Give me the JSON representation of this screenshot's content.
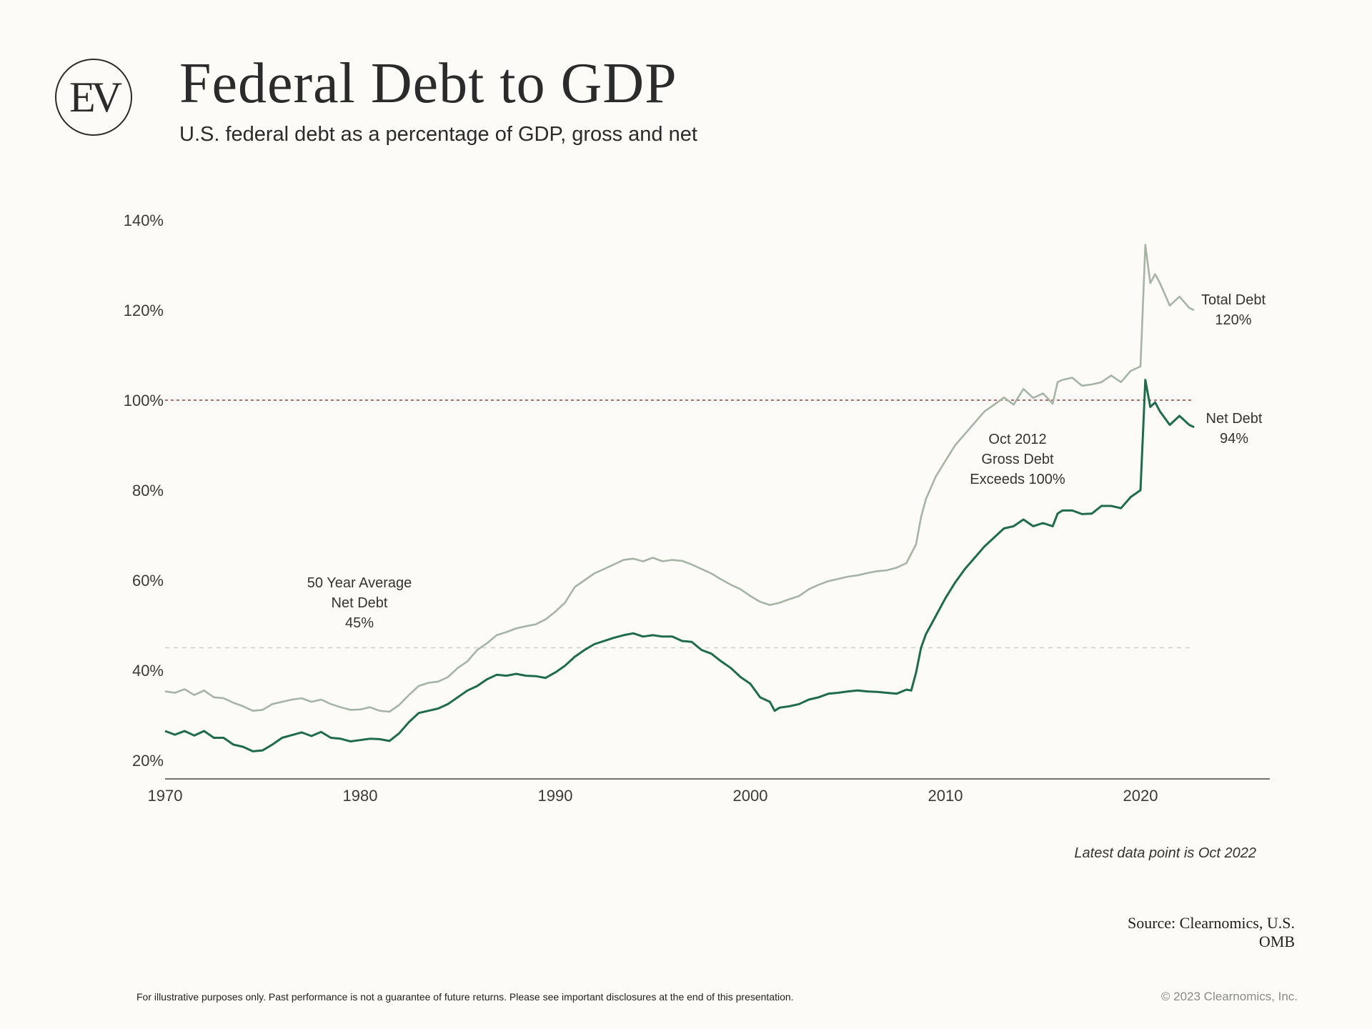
{
  "header": {
    "logo_text": "EV",
    "title": "Federal Debt to GDP",
    "subtitle": "U.S. federal debt as a percentage of GDP, gross and net"
  },
  "colors": {
    "gross": "#a6b4a6",
    "net": "#1f6b4d",
    "threshold": "#9b3b3b",
    "average": "#cfcfcf",
    "axis": "#444444"
  },
  "chart_data": {
    "type": "line",
    "title": "Federal Debt to GDP",
    "xlabel": "",
    "ylabel": "",
    "xlim": [
      1970,
      2026.5
    ],
    "ylim": [
      16,
      140
    ],
    "x_ticks": [
      1970,
      1980,
      1990,
      2000,
      2010,
      2020
    ],
    "x_tick_labels": [
      "1970",
      "1980",
      "1990",
      "2000",
      "2010",
      "2020"
    ],
    "y_ticks": [
      20,
      40,
      60,
      80,
      100,
      120,
      140
    ],
    "y_tick_labels": [
      "20%",
      "40%",
      "60%",
      "80%",
      "100%",
      "120%",
      "140%"
    ],
    "grid": false,
    "reference_lines": [
      {
        "name": "100% threshold",
        "y": 100,
        "style": "dotted",
        "color": "#9b3b3b"
      },
      {
        "name": "50 Year Average Net Debt",
        "y": 45,
        "style": "dashed",
        "color": "#cfcfcf"
      }
    ],
    "annotations": [
      {
        "lines": [
          "50 Year Average",
          "Net Debt",
          "45%"
        ]
      },
      {
        "lines": [
          "Oct 2012",
          "Gross Debt",
          "Exceeds 100%"
        ]
      }
    ],
    "series": [
      {
        "name": "Total Debt",
        "end_label": [
          "Total Debt",
          "120%"
        ],
        "color": "#a6b4a6",
        "points": [
          [
            1970,
            35.3
          ],
          [
            1970.5,
            35
          ],
          [
            1971,
            35.8
          ],
          [
            1971.5,
            34.5
          ],
          [
            1972,
            35.5
          ],
          [
            1972.5,
            34
          ],
          [
            1973,
            33.8
          ],
          [
            1973.5,
            32.8
          ],
          [
            1974,
            32
          ],
          [
            1974.5,
            31
          ],
          [
            1975,
            31.2
          ],
          [
            1975.5,
            32.5
          ],
          [
            1976,
            33
          ],
          [
            1976.5,
            33.5
          ],
          [
            1977,
            33.8
          ],
          [
            1977.5,
            33
          ],
          [
            1978,
            33.5
          ],
          [
            1978.5,
            32.5
          ],
          [
            1979,
            31.8
          ],
          [
            1979.5,
            31.2
          ],
          [
            1980,
            31.3
          ],
          [
            1980.5,
            31.8
          ],
          [
            1981,
            31
          ],
          [
            1981.5,
            30.8
          ],
          [
            1982,
            32.3
          ],
          [
            1982.5,
            34.5
          ],
          [
            1983,
            36.5
          ],
          [
            1983.5,
            37.2
          ],
          [
            1984,
            37.5
          ],
          [
            1984.5,
            38.5
          ],
          [
            1985,
            40.5
          ],
          [
            1985.5,
            42
          ],
          [
            1986,
            44.5
          ],
          [
            1986.5,
            46
          ],
          [
            1987,
            47.8
          ],
          [
            1987.5,
            48.5
          ],
          [
            1988,
            49.3
          ],
          [
            1988.5,
            49.8
          ],
          [
            1989,
            50.2
          ],
          [
            1989.5,
            51.3
          ],
          [
            1990,
            53
          ],
          [
            1990.5,
            55
          ],
          [
            1991,
            58.5
          ],
          [
            1991.5,
            60
          ],
          [
            1992,
            61.5
          ],
          [
            1992.5,
            62.5
          ],
          [
            1993,
            63.5
          ],
          [
            1993.5,
            64.5
          ],
          [
            1994,
            64.8
          ],
          [
            1994.5,
            64.2
          ],
          [
            1995,
            65
          ],
          [
            1995.5,
            64.2
          ],
          [
            1996,
            64.5
          ],
          [
            1996.5,
            64.3
          ],
          [
            1997,
            63.5
          ],
          [
            1997.5,
            62.5
          ],
          [
            1998,
            61.5
          ],
          [
            1998.5,
            60.2
          ],
          [
            1999,
            59
          ],
          [
            1999.5,
            58
          ],
          [
            2000,
            56.5
          ],
          [
            2000.5,
            55.2
          ],
          [
            2001,
            54.5
          ],
          [
            2001.5,
            55
          ],
          [
            2002,
            55.8
          ],
          [
            2002.5,
            56.5
          ],
          [
            2003,
            58
          ],
          [
            2003.5,
            59
          ],
          [
            2004,
            59.8
          ],
          [
            2004.5,
            60.3
          ],
          [
            2005,
            60.8
          ],
          [
            2005.5,
            61.1
          ],
          [
            2006,
            61.6
          ],
          [
            2006.5,
            62
          ],
          [
            2007,
            62.2
          ],
          [
            2007.5,
            62.8
          ],
          [
            2008,
            63.8
          ],
          [
            2008.5,
            68
          ],
          [
            2008.75,
            74
          ],
          [
            2009,
            78
          ],
          [
            2009.5,
            83
          ],
          [
            2010,
            86.5
          ],
          [
            2010.5,
            90
          ],
          [
            2011,
            92.5
          ],
          [
            2011.5,
            95
          ],
          [
            2012,
            97.5
          ],
          [
            2012.5,
            99
          ],
          [
            2013,
            100.6
          ],
          [
            2013.5,
            99
          ],
          [
            2014,
            102.5
          ],
          [
            2014.5,
            100.5
          ],
          [
            2015,
            101.5
          ],
          [
            2015.5,
            99.2
          ],
          [
            2015.75,
            104
          ],
          [
            2016,
            104.5
          ],
          [
            2016.5,
            105
          ],
          [
            2017,
            103.2
          ],
          [
            2017.5,
            103.5
          ],
          [
            2018,
            104
          ],
          [
            2018.5,
            105.5
          ],
          [
            2019,
            104
          ],
          [
            2019.5,
            106.5
          ],
          [
            2020,
            107.5
          ],
          [
            2020.25,
            134.5
          ],
          [
            2020.5,
            126
          ],
          [
            2020.75,
            128
          ],
          [
            2021,
            126
          ],
          [
            2021.5,
            121
          ],
          [
            2022,
            123
          ],
          [
            2022.5,
            120.5
          ],
          [
            2022.75,
            120
          ]
        ]
      },
      {
        "name": "Net Debt",
        "end_label": [
          "Net Debt",
          "94%"
        ],
        "color": "#1f6b4d",
        "points": [
          [
            1970,
            26.5
          ],
          [
            1970.5,
            25.7
          ],
          [
            1971,
            26.5
          ],
          [
            1971.5,
            25.5
          ],
          [
            1972,
            26.5
          ],
          [
            1972.5,
            25
          ],
          [
            1973,
            25
          ],
          [
            1973.5,
            23.5
          ],
          [
            1974,
            23
          ],
          [
            1974.5,
            22
          ],
          [
            1975,
            22.2
          ],
          [
            1975.5,
            23.5
          ],
          [
            1976,
            25
          ],
          [
            1976.5,
            25.6
          ],
          [
            1977,
            26.2
          ],
          [
            1977.5,
            25.4
          ],
          [
            1978,
            26.3
          ],
          [
            1978.5,
            25
          ],
          [
            1979,
            24.8
          ],
          [
            1979.5,
            24.2
          ],
          [
            1980,
            24.5
          ],
          [
            1980.5,
            24.8
          ],
          [
            1981,
            24.7
          ],
          [
            1981.5,
            24.3
          ],
          [
            1982,
            26
          ],
          [
            1982.5,
            28.5
          ],
          [
            1983,
            30.5
          ],
          [
            1983.5,
            31
          ],
          [
            1984,
            31.5
          ],
          [
            1984.5,
            32.5
          ],
          [
            1985,
            34
          ],
          [
            1985.5,
            35.5
          ],
          [
            1986,
            36.5
          ],
          [
            1986.5,
            38
          ],
          [
            1987,
            39
          ],
          [
            1987.5,
            38.8
          ],
          [
            1988,
            39.2
          ],
          [
            1988.5,
            38.8
          ],
          [
            1989,
            38.7
          ],
          [
            1989.5,
            38.3
          ],
          [
            1990,
            39.5
          ],
          [
            1990.5,
            41
          ],
          [
            1991,
            43
          ],
          [
            1991.5,
            44.5
          ],
          [
            1992,
            45.8
          ],
          [
            1992.5,
            46.5
          ],
          [
            1993,
            47.2
          ],
          [
            1993.5,
            47.8
          ],
          [
            1994,
            48.2
          ],
          [
            1994.5,
            47.5
          ],
          [
            1995,
            47.8
          ],
          [
            1995.5,
            47.5
          ],
          [
            1996,
            47.5
          ],
          [
            1996.5,
            46.5
          ],
          [
            1997,
            46.3
          ],
          [
            1997.5,
            44.5
          ],
          [
            1998,
            43.7
          ],
          [
            1998.5,
            42
          ],
          [
            1999,
            40.5
          ],
          [
            1999.5,
            38.5
          ],
          [
            2000,
            37
          ],
          [
            2000.5,
            34
          ],
          [
            2001,
            33
          ],
          [
            2001.25,
            31
          ],
          [
            2001.5,
            31.7
          ],
          [
            2002,
            32
          ],
          [
            2002.5,
            32.5
          ],
          [
            2003,
            33.5
          ],
          [
            2003.5,
            34
          ],
          [
            2004,
            34.8
          ],
          [
            2004.5,
            35
          ],
          [
            2005,
            35.3
          ],
          [
            2005.5,
            35.5
          ],
          [
            2006,
            35.3
          ],
          [
            2006.5,
            35.2
          ],
          [
            2007,
            35
          ],
          [
            2007.5,
            34.8
          ],
          [
            2008,
            35.7
          ],
          [
            2008.25,
            35.5
          ],
          [
            2008.5,
            39.5
          ],
          [
            2008.75,
            45
          ],
          [
            2009,
            48
          ],
          [
            2009.5,
            52
          ],
          [
            2010,
            56
          ],
          [
            2010.5,
            59.5
          ],
          [
            2011,
            62.5
          ],
          [
            2011.5,
            65
          ],
          [
            2012,
            67.5
          ],
          [
            2012.5,
            69.5
          ],
          [
            2013,
            71.5
          ],
          [
            2013.5,
            72
          ],
          [
            2014,
            73.5
          ],
          [
            2014.5,
            72
          ],
          [
            2015,
            72.7
          ],
          [
            2015.5,
            72
          ],
          [
            2015.75,
            74.8
          ],
          [
            2016,
            75.5
          ],
          [
            2016.5,
            75.5
          ],
          [
            2017,
            74.7
          ],
          [
            2017.5,
            74.8
          ],
          [
            2018,
            76.5
          ],
          [
            2018.5,
            76.5
          ],
          [
            2019,
            76
          ],
          [
            2019.5,
            78.5
          ],
          [
            2020,
            80
          ],
          [
            2020.25,
            104.5
          ],
          [
            2020.5,
            98.5
          ],
          [
            2020.75,
            99.5
          ],
          [
            2021,
            97.5
          ],
          [
            2021.5,
            94.5
          ],
          [
            2022,
            96.5
          ],
          [
            2022.5,
            94.5
          ],
          [
            2022.75,
            94
          ]
        ]
      }
    ]
  },
  "footer": {
    "latest_note": "Latest data point is Oct 2022",
    "source_line1": "Source: Clearnomics, U.S.",
    "source_line2": "OMB",
    "disclaimer": "For illustrative purposes only. Past performance is not a guarantee of future returns. Please see important disclosures at the end of this presentation.",
    "copyright": "© 2023 Clearnomics, Inc."
  }
}
